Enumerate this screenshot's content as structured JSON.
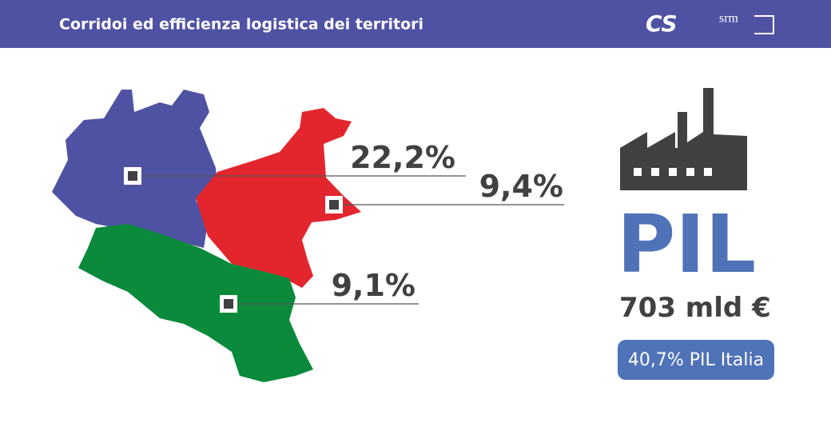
{
  "header": {
    "title": "Corridoi ed efficienza logistica dei territori",
    "logos": [
      "CS",
      "srm"
    ]
  },
  "map": {
    "regions": [
      {
        "label": "22,2%"
      },
      {
        "label": "9,4%"
      },
      {
        "label": "9,1%"
      }
    ]
  },
  "indicator": {
    "title": "PIL",
    "value": "703 mld €",
    "badge": "40,7% PIL Italia"
  }
}
